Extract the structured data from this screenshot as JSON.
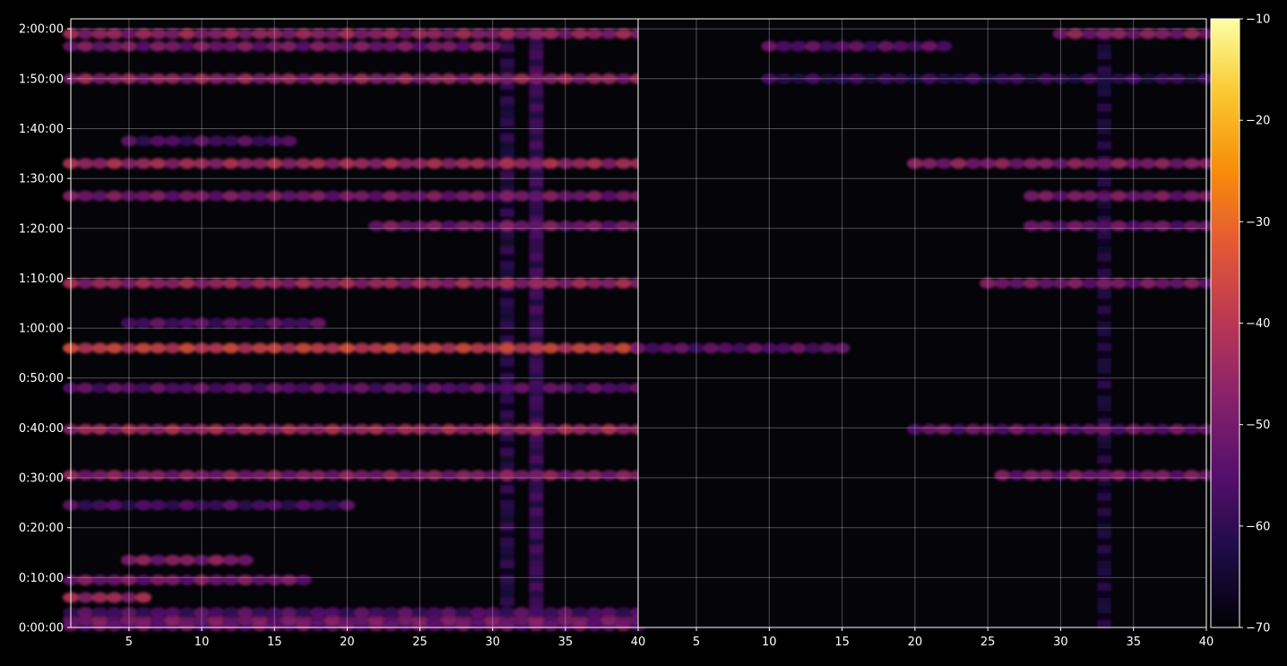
{
  "chart_data": {
    "type": "heatmap",
    "colormap": "inferno",
    "background": "#000000",
    "grid": true,
    "panels": [
      {
        "x_range": [
          1,
          40
        ],
        "x_ticks": [
          5,
          10,
          15,
          20,
          25,
          30,
          35,
          40
        ],
        "level": "high",
        "bands": [
          {
            "t": 0.3,
            "value": -52,
            "x": [
              1,
              40
            ]
          },
          {
            "t": 1.5,
            "value": -50,
            "x": [
              1,
              40
            ]
          },
          {
            "t": 3.0,
            "value": -56,
            "x": [
              1,
              40
            ]
          },
          {
            "t": 6.0,
            "value": -44,
            "x": [
              1,
              6
            ]
          },
          {
            "t": 9.5,
            "value": -50,
            "x": [
              1,
              17
            ]
          },
          {
            "t": 13.5,
            "value": -48,
            "x": [
              5,
              13
            ]
          },
          {
            "t": 24.5,
            "value": -57,
            "x": [
              1,
              20
            ]
          },
          {
            "t": 30.5,
            "value": -48,
            "x": [
              1,
              40
            ]
          },
          {
            "t": 39.7,
            "value": -44,
            "x": [
              1,
              40
            ]
          },
          {
            "t": 48.0,
            "value": -54,
            "x": [
              1,
              40
            ]
          },
          {
            "t": 56.0,
            "value": -38,
            "x": [
              1,
              40
            ]
          },
          {
            "t": 61.0,
            "value": -55,
            "x": [
              5,
              18
            ]
          },
          {
            "t": 69.0,
            "value": -45,
            "x": [
              1,
              40
            ]
          },
          {
            "t": 80.5,
            "value": -50,
            "x": [
              22,
              40
            ]
          },
          {
            "t": 86.5,
            "value": -50,
            "x": [
              1,
              40
            ]
          },
          {
            "t": 93.0,
            "value": -44,
            "x": [
              1,
              40
            ]
          },
          {
            "t": 97.5,
            "value": -56,
            "x": [
              5,
              16
            ]
          },
          {
            "t": 110.0,
            "value": -46,
            "x": [
              1,
              40
            ]
          },
          {
            "t": 116.5,
            "value": -50,
            "x": [
              1,
              30
            ]
          },
          {
            "t": 119.0,
            "value": -46,
            "x": [
              1,
              40
            ]
          }
        ],
        "columns": [
          {
            "x": 33,
            "value": -58,
            "t": [
              0,
              120
            ]
          },
          {
            "x": 31,
            "value": -62,
            "t": [
              0,
              120
            ]
          }
        ]
      },
      {
        "x_range": [
          1,
          40
        ],
        "x_ticks": [
          5,
          10,
          15,
          20,
          25,
          30,
          35,
          40
        ],
        "level": "low",
        "bands": [
          {
            "t": 30.5,
            "value": -50,
            "x": [
              26,
              40
            ]
          },
          {
            "t": 39.7,
            "value": -52,
            "x": [
              20,
              40
            ]
          },
          {
            "t": 56.0,
            "value": -54,
            "x": [
              1,
              15
            ]
          },
          {
            "t": 69.0,
            "value": -50,
            "x": [
              25,
              40
            ]
          },
          {
            "t": 80.5,
            "value": -52,
            "x": [
              28,
              40
            ]
          },
          {
            "t": 86.5,
            "value": -50,
            "x": [
              28,
              40
            ]
          },
          {
            "t": 93.0,
            "value": -48,
            "x": [
              20,
              40
            ]
          },
          {
            "t": 110.0,
            "value": -60,
            "x": [
              10,
              40
            ]
          },
          {
            "t": 116.5,
            "value": -54,
            "x": [
              10,
              22
            ]
          },
          {
            "t": 119.0,
            "value": -48,
            "x": [
              30,
              40
            ]
          }
        ],
        "columns": [
          {
            "x": 33,
            "value": -64,
            "t": [
              0,
              120
            ]
          }
        ]
      }
    ],
    "y_range_minutes": [
      0,
      122
    ],
    "y_ticks": [
      {
        "minutes": 0,
        "label": "0:00:00"
      },
      {
        "minutes": 10,
        "label": "0:10:00"
      },
      {
        "minutes": 20,
        "label": "0:20:00"
      },
      {
        "minutes": 30,
        "label": "0:30:00"
      },
      {
        "minutes": 40,
        "label": "0:40:00"
      },
      {
        "minutes": 50,
        "label": "0:50:00"
      },
      {
        "minutes": 60,
        "label": "1:00:00"
      },
      {
        "minutes": 70,
        "label": "1:10:00"
      },
      {
        "minutes": 80,
        "label": "1:20:00"
      },
      {
        "minutes": 90,
        "label": "1:30:00"
      },
      {
        "minutes": 100,
        "label": "1:40:00"
      },
      {
        "minutes": 110,
        "label": "1:50:00"
      },
      {
        "minutes": 120,
        "label": "2:00:00"
      }
    ],
    "colorbar": {
      "range": [
        -70,
        -10
      ],
      "ticks": [
        {
          "value": -10,
          "label": "−10"
        },
        {
          "value": -20,
          "label": "−20"
        },
        {
          "value": -30,
          "label": "−30"
        },
        {
          "value": -40,
          "label": "−40"
        },
        {
          "value": -50,
          "label": "−50"
        },
        {
          "value": -60,
          "label": "−60"
        },
        {
          "value": -70,
          "label": "−70"
        }
      ]
    }
  }
}
